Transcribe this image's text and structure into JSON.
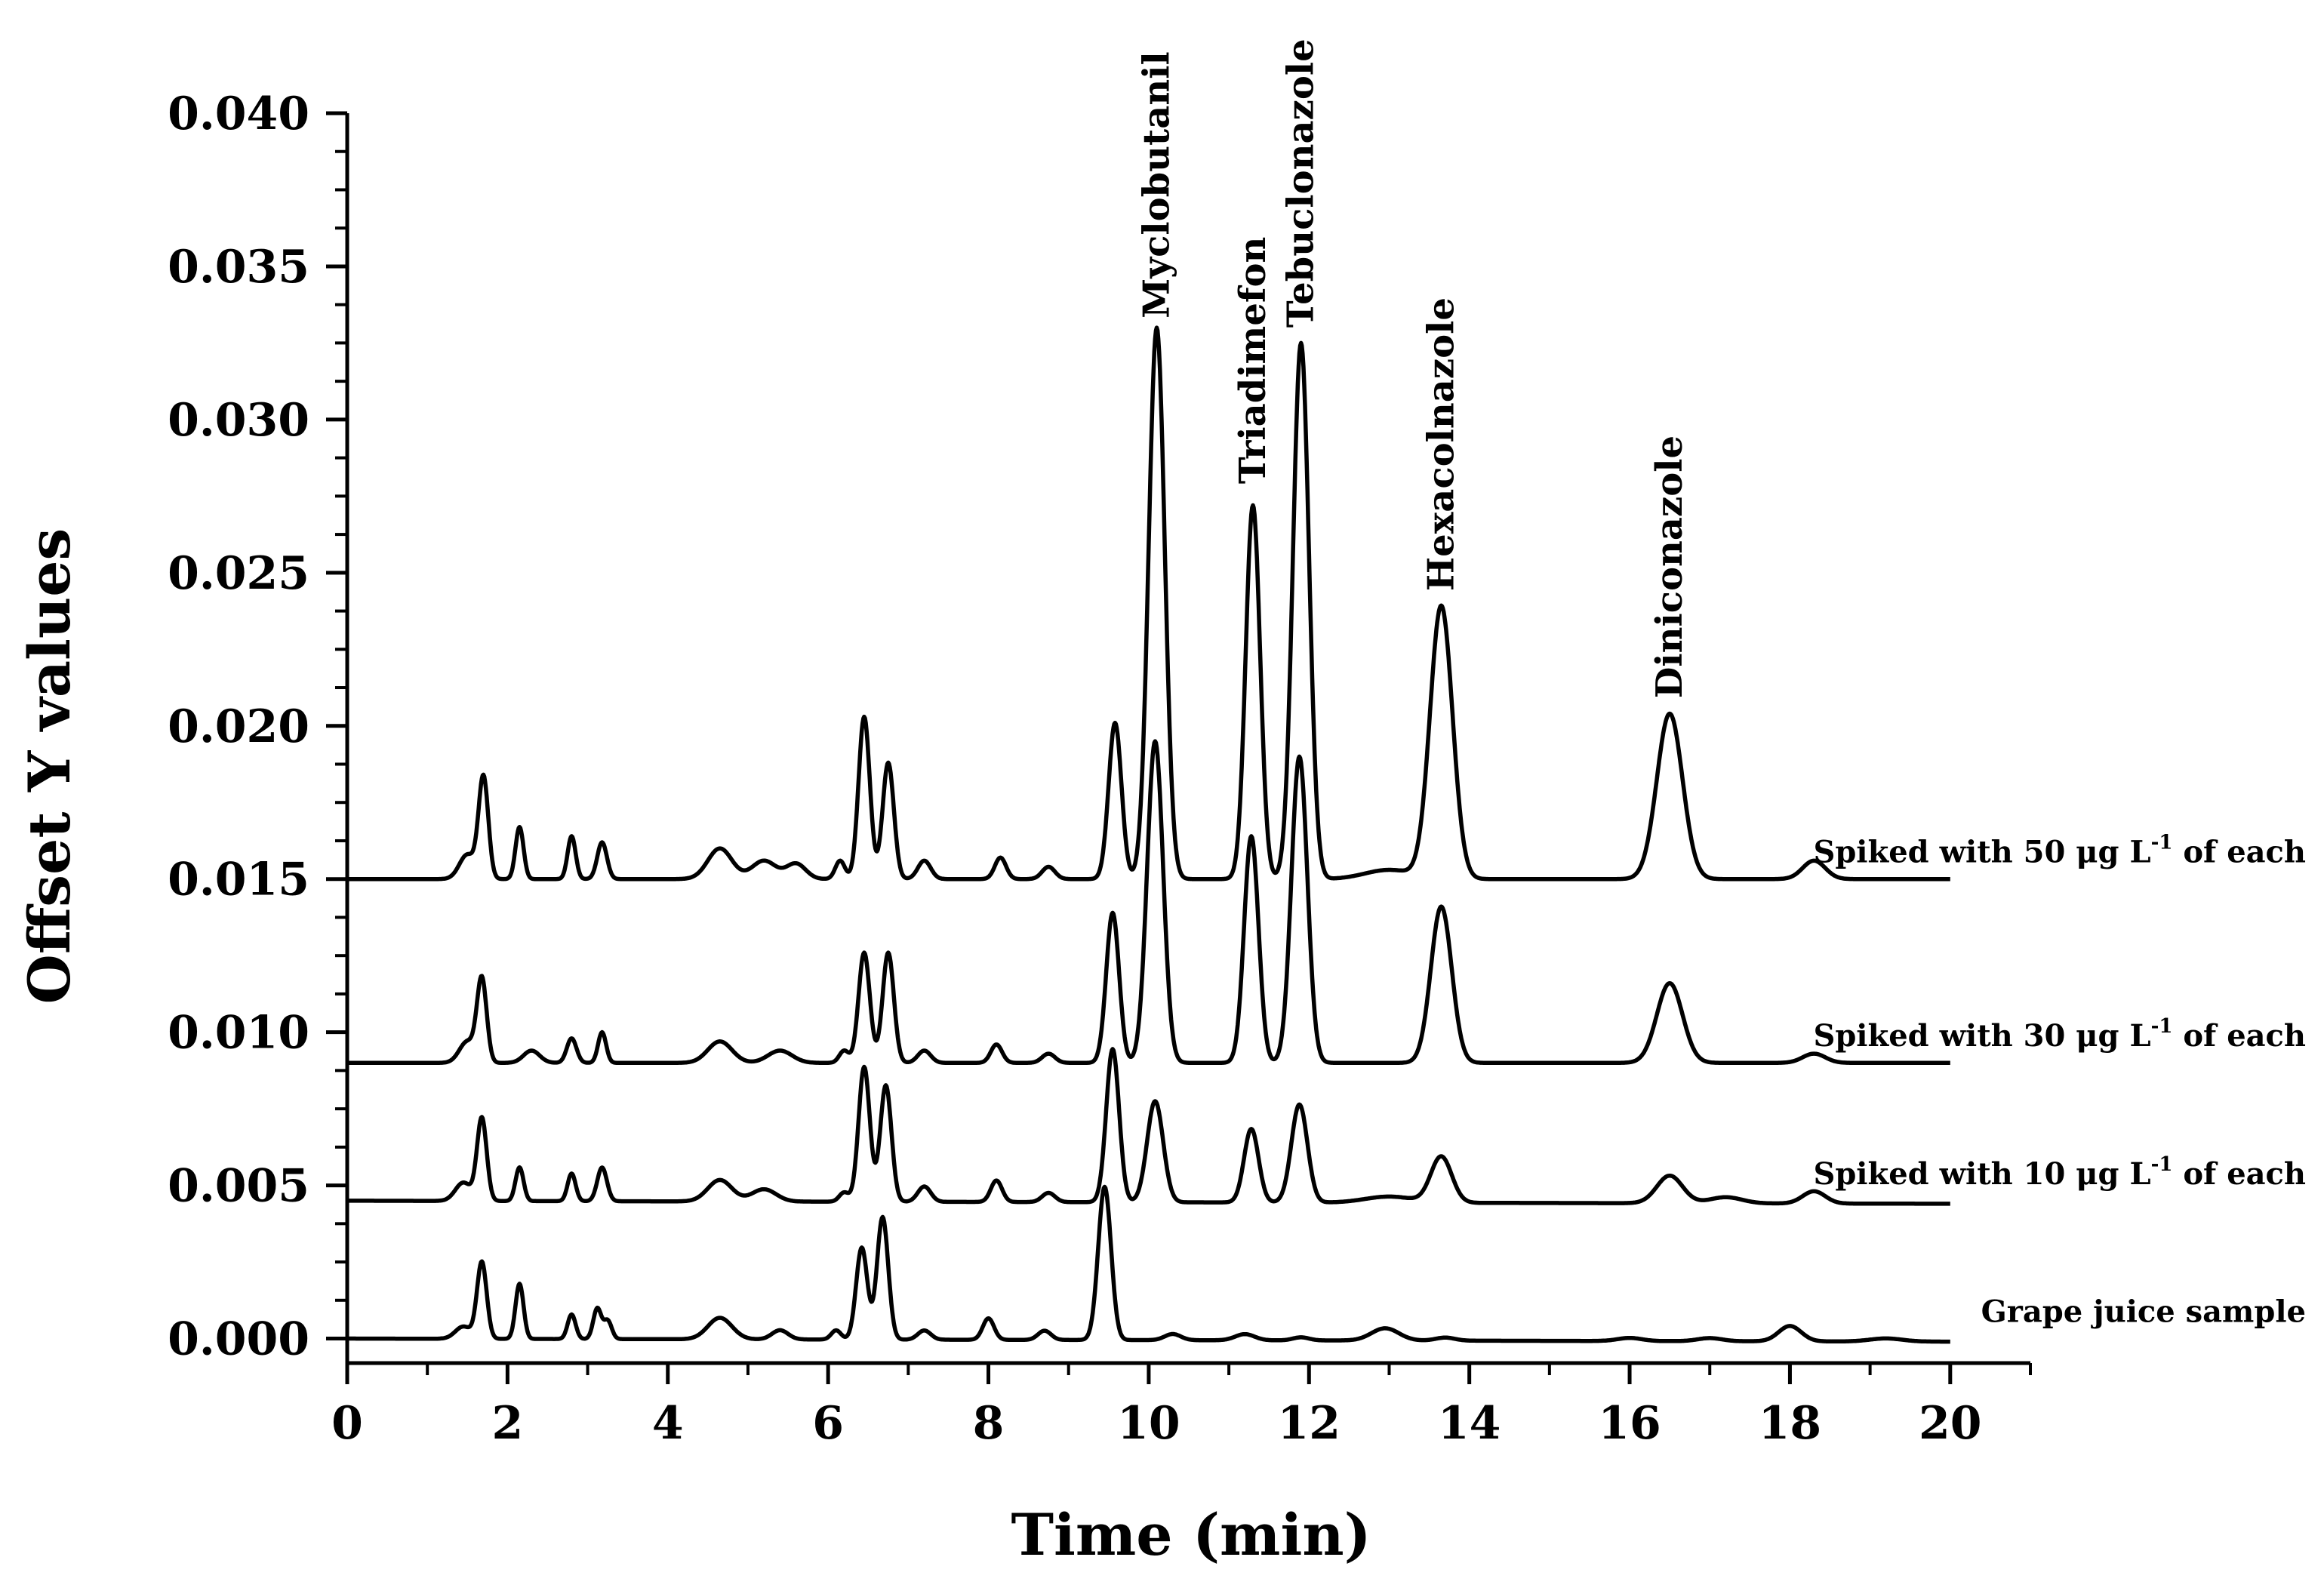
{
  "chart_data": {
    "type": "line",
    "title": "",
    "xlabel": "Time (min)",
    "ylabel": "Offset Y values",
    "xlim": [
      0,
      21
    ],
    "ylim": [
      -0.0008,
      0.04
    ],
    "x_ticks": [
      0,
      2,
      4,
      6,
      8,
      10,
      12,
      14,
      16,
      18,
      20
    ],
    "x_tick_labels": [
      "0",
      "2",
      "4",
      "6",
      "8",
      "10",
      "12",
      "14",
      "16",
      "18",
      "20"
    ],
    "y_ticks": [
      0.0,
      0.005,
      0.01,
      0.015,
      0.02,
      0.025,
      0.03,
      0.035,
      0.04
    ],
    "y_tick_labels": [
      "0.000",
      "0.005",
      "0.010",
      "0.015",
      "0.020",
      "0.025",
      "0.030",
      "0.035",
      "0.040"
    ],
    "grid": false,
    "legend": "none",
    "line_color": "#000000",
    "annotations": [
      {
        "text": "Myclobutanil",
        "x": 10.1,
        "y": 0.0333
      },
      {
        "text": "Triadimefon",
        "x": 11.3,
        "y": 0.0279
      },
      {
        "text": "Tebuclonazole",
        "x": 11.9,
        "y": 0.033
      },
      {
        "text": "Hexacolnazole",
        "x": 13.65,
        "y": 0.0244
      },
      {
        "text": "Diniconazole",
        "x": 16.5,
        "y": 0.0209
      }
    ],
    "series": [
      {
        "name": "Spiked with 50 μg L-1 of each",
        "label_main": "Spiked with 50 μg L",
        "label_sup": "-1",
        "label_tail": " of each",
        "baseline": 0.015,
        "baseline_end": 0.015,
        "x_start": 0.0,
        "x_end": 20.0,
        "peaks": [
          [
            1.5,
            0.0008,
            0.1
          ],
          [
            1.7,
            0.0033,
            0.06
          ],
          [
            2.15,
            0.0017,
            0.05
          ],
          [
            2.8,
            0.0014,
            0.05
          ],
          [
            3.18,
            0.0012,
            0.06
          ],
          [
            4.65,
            0.001,
            0.15
          ],
          [
            5.2,
            0.0006,
            0.15
          ],
          [
            5.6,
            0.0005,
            0.12
          ],
          [
            6.15,
            0.0006,
            0.06
          ],
          [
            6.45,
            0.0053,
            0.07
          ],
          [
            6.75,
            0.0038,
            0.07
          ],
          [
            7.2,
            0.0006,
            0.08
          ],
          [
            8.15,
            0.0007,
            0.07
          ],
          [
            8.75,
            0.0004,
            0.08
          ],
          [
            9.58,
            0.0051,
            0.08
          ],
          [
            10.1,
            0.018,
            0.1
          ],
          [
            11.3,
            0.0122,
            0.09
          ],
          [
            11.9,
            0.0175,
            0.1
          ],
          [
            13.0,
            0.0003,
            0.3
          ],
          [
            13.65,
            0.0089,
            0.14
          ],
          [
            16.5,
            0.0054,
            0.16
          ],
          [
            18.3,
            0.0006,
            0.14
          ]
        ]
      },
      {
        "name": "Spiked with 30 μg L-1 of each",
        "label_main": "Spiked with 30 μg L",
        "label_sup": "-1",
        "label_tail": " of each",
        "baseline": 0.009,
        "baseline_end": 0.009,
        "x_start": 0.0,
        "x_end": 20.0,
        "peaks": [
          [
            1.5,
            0.0007,
            0.1
          ],
          [
            1.68,
            0.0027,
            0.06
          ],
          [
            2.3,
            0.0004,
            0.1
          ],
          [
            2.8,
            0.0008,
            0.06
          ],
          [
            3.18,
            0.001,
            0.05
          ],
          [
            4.65,
            0.0007,
            0.15
          ],
          [
            5.4,
            0.0004,
            0.15
          ],
          [
            6.2,
            0.0004,
            0.06
          ],
          [
            6.45,
            0.0036,
            0.07
          ],
          [
            6.75,
            0.0036,
            0.07
          ],
          [
            7.2,
            0.0004,
            0.08
          ],
          [
            8.1,
            0.0006,
            0.07
          ],
          [
            8.75,
            0.0003,
            0.08
          ],
          [
            9.55,
            0.0049,
            0.08
          ],
          [
            10.08,
            0.0105,
            0.1
          ],
          [
            11.28,
            0.0074,
            0.09
          ],
          [
            11.88,
            0.01,
            0.1
          ],
          [
            13.65,
            0.0051,
            0.13
          ],
          [
            16.5,
            0.0026,
            0.16
          ],
          [
            18.3,
            0.0003,
            0.14
          ]
        ]
      },
      {
        "name": "Spiked with 10 μg L-1 of each",
        "label_main": "Spiked with 10 μg L",
        "label_sup": "-1",
        "label_tail": " of each",
        "baseline": 0.0045,
        "baseline_end": 0.0044,
        "x_start": 0.0,
        "x_end": 20.0,
        "peaks": [
          [
            1.45,
            0.0006,
            0.1
          ],
          [
            1.68,
            0.0027,
            0.06
          ],
          [
            2.15,
            0.0011,
            0.05
          ],
          [
            2.8,
            0.0009,
            0.05
          ],
          [
            3.18,
            0.0011,
            0.06
          ],
          [
            4.65,
            0.0007,
            0.15
          ],
          [
            5.2,
            0.0004,
            0.15
          ],
          [
            6.2,
            0.0003,
            0.06
          ],
          [
            6.45,
            0.0044,
            0.07
          ],
          [
            6.72,
            0.0038,
            0.07
          ],
          [
            7.2,
            0.0005,
            0.08
          ],
          [
            8.1,
            0.0007,
            0.07
          ],
          [
            8.75,
            0.0003,
            0.08
          ],
          [
            9.55,
            0.005,
            0.08
          ],
          [
            10.08,
            0.0033,
            0.1
          ],
          [
            11.28,
            0.0024,
            0.09
          ],
          [
            11.88,
            0.0032,
            0.1
          ],
          [
            13.0,
            0.0002,
            0.3
          ],
          [
            13.65,
            0.0015,
            0.13
          ],
          [
            16.5,
            0.0009,
            0.16
          ],
          [
            17.2,
            0.0002,
            0.2
          ],
          [
            18.3,
            0.0004,
            0.14
          ]
        ]
      },
      {
        "name": "Grape juice sample",
        "label_main": "Grape juice sample",
        "label_sup": "",
        "label_tail": "",
        "baseline": 0.0,
        "baseline_end": -0.0001,
        "x_start": 0.0,
        "x_end": 20.0,
        "peaks": [
          [
            1.45,
            0.0004,
            0.1
          ],
          [
            1.68,
            0.0025,
            0.06
          ],
          [
            2.15,
            0.0018,
            0.05
          ],
          [
            2.8,
            0.0008,
            0.05
          ],
          [
            3.12,
            0.001,
            0.05
          ],
          [
            3.25,
            0.0006,
            0.05
          ],
          [
            4.65,
            0.0007,
            0.15
          ],
          [
            5.4,
            0.0003,
            0.1
          ],
          [
            6.1,
            0.0003,
            0.06
          ],
          [
            6.42,
            0.003,
            0.07
          ],
          [
            6.68,
            0.004,
            0.07
          ],
          [
            7.2,
            0.0003,
            0.08
          ],
          [
            8.0,
            0.0007,
            0.07
          ],
          [
            8.7,
            0.0003,
            0.08
          ],
          [
            9.45,
            0.005,
            0.08
          ],
          [
            10.3,
            0.0002,
            0.1
          ],
          [
            11.2,
            0.0002,
            0.12
          ],
          [
            11.9,
            0.0001,
            0.1
          ],
          [
            12.95,
            0.0004,
            0.17
          ],
          [
            13.7,
            0.0001,
            0.12
          ],
          [
            16.0,
            0.0001,
            0.15
          ],
          [
            17.0,
            0.0001,
            0.15
          ],
          [
            18.0,
            0.0005,
            0.14
          ],
          [
            19.2,
            0.0001,
            0.2
          ]
        ]
      }
    ]
  }
}
